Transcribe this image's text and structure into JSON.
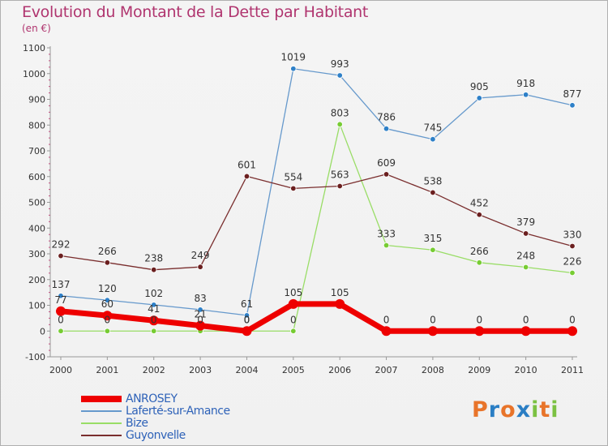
{
  "title": "Evolution du Montant de la Dette par Habitant",
  "subtitle": "(en €)",
  "brand": {
    "text": "Proxiti",
    "letters": [
      "P",
      "r",
      "o",
      "x",
      "i",
      "t",
      "i"
    ],
    "colors": [
      "#e8742a",
      "#2a7ec4",
      "#e8742a",
      "#2a7ec4",
      "#7bc142",
      "#e8742a",
      "#7bc142"
    ]
  },
  "chart_data": {
    "type": "line",
    "title": "Evolution du Montant de la Dette par Habitant",
    "subtitle": "(en €)",
    "x": [
      "2000",
      "2001",
      "2002",
      "2003",
      "2004",
      "2005",
      "2006",
      "2007",
      "2008",
      "2009",
      "2010",
      "2011"
    ],
    "ylim": [
      -100,
      1100
    ],
    "yticks": [
      -100,
      0,
      100,
      200,
      300,
      400,
      500,
      600,
      700,
      800,
      900,
      1000,
      1100
    ],
    "grid": false,
    "legend_position": "bottom-left",
    "series": [
      {
        "name": "ANROSEY",
        "color": "#ee0000",
        "style": "thick",
        "values": [
          77,
          60,
          41,
          21,
          0,
          105,
          105,
          0,
          0,
          0,
          0,
          0
        ],
        "labels": [
          "77",
          "60",
          "41",
          "21",
          "0",
          "105",
          "105",
          "0",
          "0",
          "0",
          "0",
          "0"
        ]
      },
      {
        "name": "Laferté-sur-Amance",
        "color": "#6699cc",
        "marker": "#2e80c8",
        "values": [
          137,
          120,
          102,
          83,
          61,
          1019,
          993,
          786,
          745,
          905,
          918,
          877
        ],
        "labels": [
          "137",
          "120",
          "102",
          "83",
          "61",
          "1019",
          "993",
          "786",
          "745",
          "905",
          "918",
          "877"
        ]
      },
      {
        "name": "Bize",
        "color": "#99dd66",
        "marker": "#77cc33",
        "values": [
          0,
          0,
          0,
          0,
          0,
          0,
          803,
          333,
          315,
          266,
          248,
          226
        ],
        "labels": [
          "0",
          "0",
          "0",
          "0",
          "0",
          "0",
          "803",
          "333",
          "315",
          "266",
          "248",
          "226"
        ]
      },
      {
        "name": "Guyonvelle",
        "color": "#7a2e2e",
        "marker": "#6b1f1f",
        "values": [
          292,
          266,
          238,
          249,
          601,
          554,
          563,
          609,
          538,
          452,
          379,
          330
        ],
        "labels": [
          "292",
          "266",
          "238",
          "249",
          "601",
          "554",
          "563",
          "609",
          "538",
          "452",
          "379",
          "330"
        ]
      }
    ]
  }
}
